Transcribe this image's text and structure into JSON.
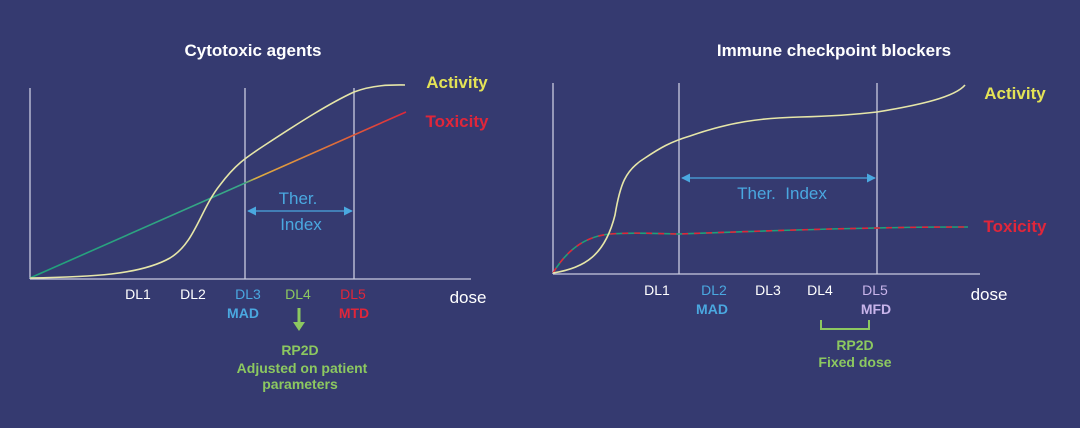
{
  "colors": {
    "background": "#353a70",
    "activity": "#e4e356",
    "activity_curve": "#e6e6a8",
    "toxicity": "#e0263a",
    "blue": "#4aa8e0",
    "green": "#8cc860",
    "purple": "#c8b4ea",
    "white": "#ffffff"
  },
  "left": {
    "title": "Cytotoxic agents",
    "activity_label": "Activity",
    "toxicity_label": "Toxicity",
    "ther_line1": "Ther.",
    "ther_line2": "Index",
    "x_axis_label": "dose",
    "dose_levels": [
      "DL1",
      "DL2",
      "DL3",
      "DL4",
      "DL5"
    ],
    "mad": "MAD",
    "mtd": "MTD",
    "rp2d": "RP2D",
    "rp2d_note_line1": "Adjusted on patient",
    "rp2d_note_line2": "parameters"
  },
  "right": {
    "title": "Immune checkpoint blockers",
    "activity_label": "Activity",
    "toxicity_label": "Toxicity",
    "ther_index": "Ther.  Index",
    "x_axis_label": "dose",
    "dose_levels": [
      "DL1",
      "DL2",
      "DL3",
      "DL4",
      "DL5"
    ],
    "mad": "MAD",
    "mfd": "MFD",
    "rp2d": "RP2D",
    "rp2d_note": "Fixed dose"
  }
}
